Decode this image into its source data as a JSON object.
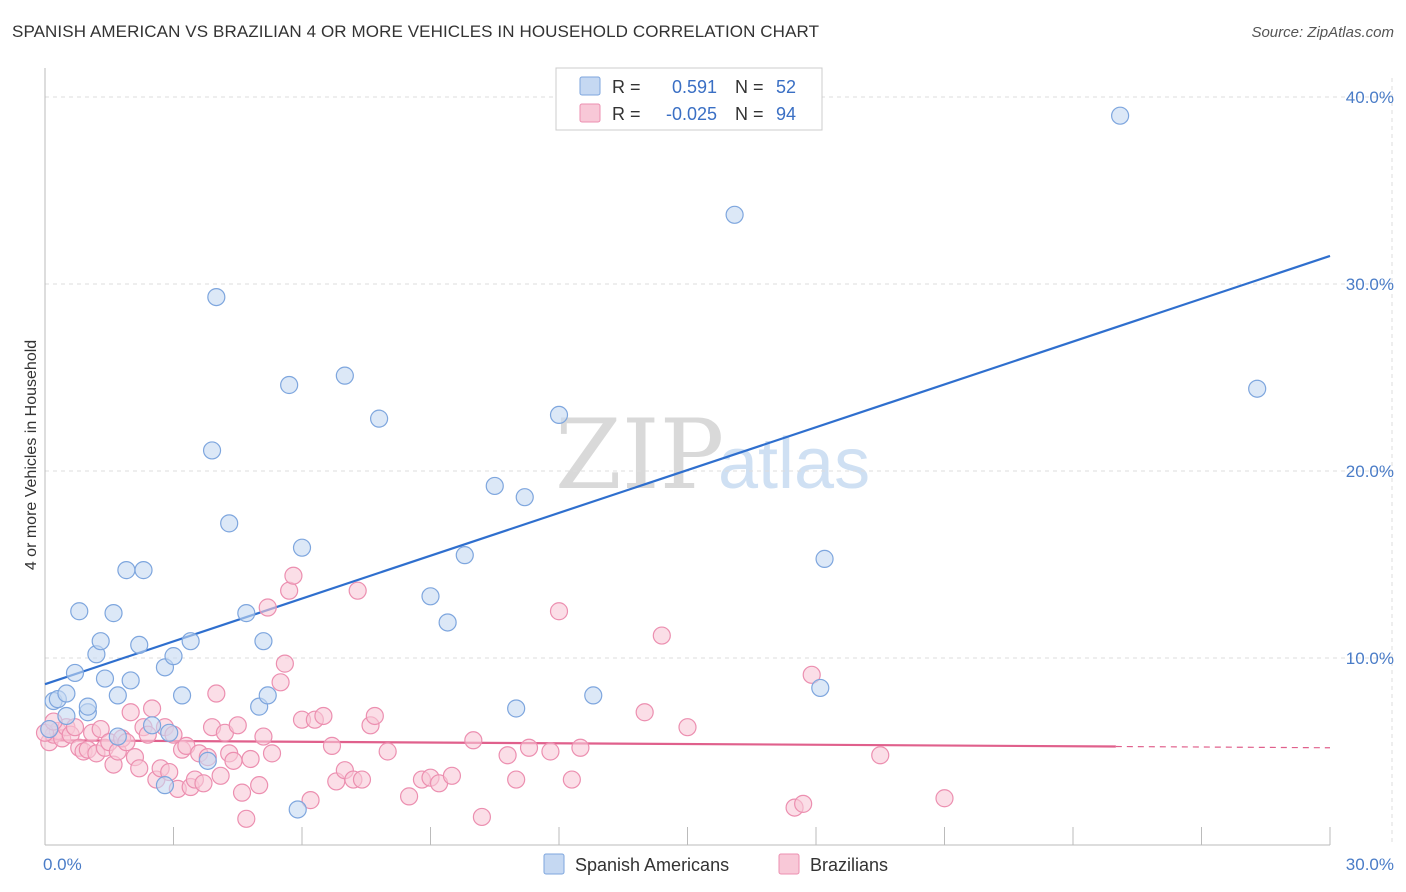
{
  "header": {
    "title": "SPANISH AMERICAN VS BRAZILIAN 4 OR MORE VEHICLES IN HOUSEHOLD CORRELATION CHART",
    "source": "Source: ZipAtlas.com"
  },
  "watermark": {
    "zip": "ZIP",
    "atlas": "atlas"
  },
  "legend": {
    "series1": {
      "r_label": "R =",
      "r_value": "0.591",
      "n_label": "N =",
      "n_value": "52"
    },
    "series2": {
      "r_label": "R =",
      "r_value": "-0.025",
      "n_label": "N =",
      "n_value": "94"
    }
  },
  "colors": {
    "blue_fill": "#c5d8f2",
    "blue_stroke": "#7ea6de",
    "blue_line": "#2f6fce",
    "pink_fill": "#f8c8d7",
    "pink_stroke": "#ec8fb0",
    "pink_line": "#e0608c",
    "grid": "#dddddd",
    "axis": "#999999"
  },
  "chart_data": {
    "type": "scatter",
    "title": "SPANISH AMERICAN VS BRAZILIAN 4 OR MORE VEHICLES IN HOUSEHOLD CORRELATION CHART",
    "xlabel": "",
    "ylabel": "4 or more Vehicles in Household",
    "xlim": [
      0,
      30
    ],
    "ylim": [
      0,
      40
    ],
    "x_tick_labels": [
      "0.0%",
      "30.0%"
    ],
    "y_tick_labels": [
      "10.0%",
      "20.0%",
      "30.0%",
      "40.0%"
    ],
    "y_ticks": [
      10,
      20,
      30,
      40
    ],
    "legend_entries": [
      "Spanish Americans",
      "Brazilians"
    ],
    "series": [
      {
        "name": "Spanish Americans",
        "points": [
          [
            0.2,
            7.7
          ],
          [
            0.3,
            7.8
          ],
          [
            0.5,
            8.1
          ],
          [
            0.5,
            6.9
          ],
          [
            0.7,
            9.2
          ],
          [
            0.8,
            12.5
          ],
          [
            1.0,
            7.1
          ],
          [
            1.0,
            7.4
          ],
          [
            1.2,
            10.2
          ],
          [
            1.3,
            10.9
          ],
          [
            1.4,
            8.9
          ],
          [
            1.6,
            12.4
          ],
          [
            1.7,
            8.0
          ],
          [
            1.9,
            14.7
          ],
          [
            2.0,
            8.8
          ],
          [
            2.2,
            10.7
          ],
          [
            2.3,
            14.7
          ],
          [
            2.5,
            6.4
          ],
          [
            2.8,
            9.5
          ],
          [
            2.9,
            6.0
          ],
          [
            3.0,
            10.1
          ],
          [
            3.2,
            8.0
          ],
          [
            3.4,
            10.9
          ],
          [
            3.9,
            21.1
          ],
          [
            4.0,
            29.3
          ],
          [
            4.3,
            17.2
          ],
          [
            4.7,
            12.4
          ],
          [
            5.0,
            7.4
          ],
          [
            5.1,
            10.9
          ],
          [
            5.2,
            8.0
          ],
          [
            5.7,
            24.6
          ],
          [
            6.0,
            15.9
          ],
          [
            7.0,
            25.1
          ],
          [
            7.8,
            22.8
          ],
          [
            9.0,
            13.3
          ],
          [
            9.4,
            11.9
          ],
          [
            9.8,
            15.5
          ],
          [
            10.5,
            19.2
          ],
          [
            11.0,
            7.3
          ],
          [
            11.2,
            18.6
          ],
          [
            12.0,
            23.0
          ],
          [
            12.8,
            8.0
          ],
          [
            1.7,
            5.8
          ],
          [
            3.8,
            4.5
          ],
          [
            2.8,
            3.2
          ],
          [
            5.9,
            1.9
          ],
          [
            16.1,
            33.7
          ],
          [
            18.2,
            15.3
          ],
          [
            18.1,
            8.4
          ],
          [
            25.1,
            39.0
          ],
          [
            28.3,
            24.4
          ],
          [
            0.1,
            6.2
          ]
        ]
      },
      {
        "name": "Brazilians",
        "points": [
          [
            0.1,
            6.2
          ],
          [
            0.1,
            5.5
          ],
          [
            0.2,
            5.9
          ],
          [
            0.3,
            6.1
          ],
          [
            0.4,
            5.7
          ],
          [
            0.5,
            6.3
          ],
          [
            0.6,
            5.9
          ],
          [
            0.7,
            6.3
          ],
          [
            0.8,
            5.2
          ],
          [
            0.9,
            5.0
          ],
          [
            1.0,
            5.1
          ],
          [
            1.1,
            6.0
          ],
          [
            1.2,
            4.9
          ],
          [
            1.3,
            6.2
          ],
          [
            1.4,
            5.2
          ],
          [
            1.5,
            5.5
          ],
          [
            1.6,
            4.3
          ],
          [
            1.7,
            5.0
          ],
          [
            1.8,
            5.7
          ],
          [
            1.9,
            5.5
          ],
          [
            2.0,
            7.1
          ],
          [
            2.1,
            4.7
          ],
          [
            2.2,
            4.1
          ],
          [
            2.3,
            6.3
          ],
          [
            2.4,
            5.9
          ],
          [
            2.5,
            7.3
          ],
          [
            2.6,
            3.5
          ],
          [
            2.7,
            4.1
          ],
          [
            2.8,
            6.3
          ],
          [
            2.9,
            3.9
          ],
          [
            3.0,
            5.9
          ],
          [
            3.1,
            3.0
          ],
          [
            3.2,
            5.1
          ],
          [
            3.3,
            5.3
          ],
          [
            3.4,
            3.1
          ],
          [
            3.5,
            3.5
          ],
          [
            3.6,
            4.9
          ],
          [
            3.7,
            3.3
          ],
          [
            3.8,
            4.7
          ],
          [
            3.9,
            6.3
          ],
          [
            4.0,
            8.1
          ],
          [
            4.1,
            3.7
          ],
          [
            4.2,
            6.0
          ],
          [
            4.3,
            4.9
          ],
          [
            4.4,
            4.5
          ],
          [
            4.5,
            6.4
          ],
          [
            4.6,
            2.8
          ],
          [
            4.7,
            1.4
          ],
          [
            4.8,
            4.6
          ],
          [
            5.0,
            3.2
          ],
          [
            5.1,
            5.8
          ],
          [
            5.2,
            12.7
          ],
          [
            5.3,
            4.9
          ],
          [
            5.5,
            8.7
          ],
          [
            5.6,
            9.7
          ],
          [
            5.7,
            13.6
          ],
          [
            5.8,
            14.4
          ],
          [
            6.0,
            6.7
          ],
          [
            6.2,
            2.4
          ],
          [
            6.3,
            6.7
          ],
          [
            6.5,
            6.9
          ],
          [
            6.7,
            5.3
          ],
          [
            6.8,
            3.4
          ],
          [
            7.0,
            4.0
          ],
          [
            7.2,
            3.5
          ],
          [
            7.3,
            13.6
          ],
          [
            7.4,
            3.5
          ],
          [
            7.6,
            6.4
          ],
          [
            7.7,
            6.9
          ],
          [
            8.0,
            5.0
          ],
          [
            8.5,
            2.6
          ],
          [
            8.8,
            3.5
          ],
          [
            9.0,
            3.6
          ],
          [
            9.2,
            3.3
          ],
          [
            9.5,
            3.7
          ],
          [
            10.0,
            5.6
          ],
          [
            10.2,
            1.5
          ],
          [
            10.8,
            4.8
          ],
          [
            11.0,
            3.5
          ],
          [
            11.3,
            5.2
          ],
          [
            11.8,
            5.0
          ],
          [
            12.0,
            12.5
          ],
          [
            12.3,
            3.5
          ],
          [
            12.5,
            5.2
          ],
          [
            14.0,
            7.1
          ],
          [
            14.4,
            11.2
          ],
          [
            15.0,
            6.3
          ],
          [
            17.5,
            2.0
          ],
          [
            17.7,
            2.2
          ],
          [
            17.9,
            9.1
          ],
          [
            19.5,
            4.8
          ],
          [
            21.0,
            2.5
          ],
          [
            0.0,
            6.0
          ],
          [
            0.2,
            6.6
          ]
        ]
      }
    ],
    "trend_lines": [
      {
        "name": "Spanish Americans",
        "x": [
          0,
          30
        ],
        "y": [
          8.6,
          31.5
        ]
      },
      {
        "name": "Brazilians",
        "x": [
          0,
          30
        ],
        "y": [
          5.6,
          5.2
        ],
        "solid_until_x": 25
      }
    ]
  },
  "bottom_legend": {
    "item1": "Spanish Americans",
    "item2": "Brazilians"
  }
}
